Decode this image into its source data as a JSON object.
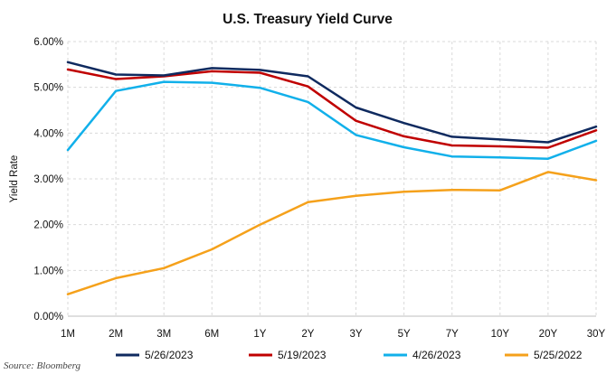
{
  "chart_data": {
    "type": "line",
    "title": "U.S. Treasury Yield Curve",
    "xlabel": "",
    "ylabel": "Yield Rate",
    "source": "Source: Bloomberg",
    "categories": [
      "1M",
      "2M",
      "3M",
      "6M",
      "1Y",
      "2Y",
      "3Y",
      "5Y",
      "7Y",
      "10Y",
      "20Y",
      "30Y"
    ],
    "ylim": [
      0,
      6
    ],
    "yticks": [
      "0.00%",
      "1.00%",
      "2.00%",
      "3.00%",
      "4.00%",
      "5.00%",
      "6.00%"
    ],
    "grid": true,
    "legend_position": "bottom",
    "series": [
      {
        "name": "5/26/2023",
        "color": "#0f2a5f",
        "values": [
          5.55,
          5.28,
          5.26,
          5.42,
          5.38,
          5.24,
          4.56,
          4.22,
          3.92,
          3.86,
          3.8,
          4.14
        ]
      },
      {
        "name": "5/19/2023",
        "color": "#c00000",
        "values": [
          5.39,
          5.18,
          5.24,
          5.35,
          5.32,
          5.02,
          4.27,
          3.93,
          3.73,
          3.71,
          3.68,
          4.06
        ]
      },
      {
        "name": "4/26/2023",
        "color": "#11b0ea",
        "values": [
          3.63,
          4.92,
          5.12,
          5.1,
          4.99,
          4.68,
          3.96,
          3.69,
          3.49,
          3.47,
          3.44,
          3.83
        ]
      },
      {
        "name": "5/25/2022",
        "color": "#f5a11b",
        "values": [
          0.48,
          0.83,
          1.05,
          1.46,
          2.0,
          2.49,
          2.63,
          2.72,
          2.76,
          2.75,
          3.15,
          2.97
        ]
      }
    ]
  }
}
